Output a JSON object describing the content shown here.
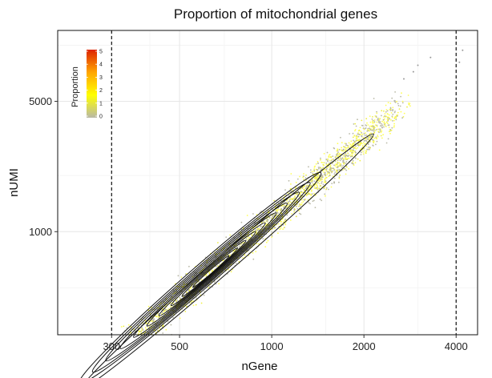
{
  "chart_data": {
    "type": "scatter",
    "title": "Proportion of mitochondrial genes",
    "xlabel": "nGene",
    "ylabel": "nUMI",
    "x_scale": "log",
    "y_scale": "log",
    "xlim": [
      200,
      4700
    ],
    "ylim": [
      280,
      12000
    ],
    "x_ticks": [
      {
        "value": 300,
        "label": "300"
      },
      {
        "value": 500,
        "label": "500"
      },
      {
        "value": 1000,
        "label": "1000"
      },
      {
        "value": 2000,
        "label": "2000"
      },
      {
        "value": 4000,
        "label": "4000"
      }
    ],
    "y_ticks": [
      {
        "value": 1000,
        "label": "1000"
      },
      {
        "value": 5000,
        "label": "5000"
      }
    ],
    "grid": true,
    "vlines": [
      300,
      4000
    ],
    "legend": {
      "title": "Proportion",
      "placement": "top-left",
      "range": [
        0,
        5
      ],
      "ticks": [
        {
          "value": 0,
          "label": "0"
        },
        {
          "value": 1,
          "label": "1"
        },
        {
          "value": 2,
          "label": "2"
        },
        {
          "value": 3,
          "label": "3"
        },
        {
          "value": 4,
          "label": "4"
        },
        {
          "value": 5,
          "label": "5"
        }
      ],
      "colors": [
        "#b9b9a6",
        "#ffff00",
        "#ffa500",
        "#dd2200"
      ]
    },
    "density_contours": true,
    "point_count": 2600
  }
}
